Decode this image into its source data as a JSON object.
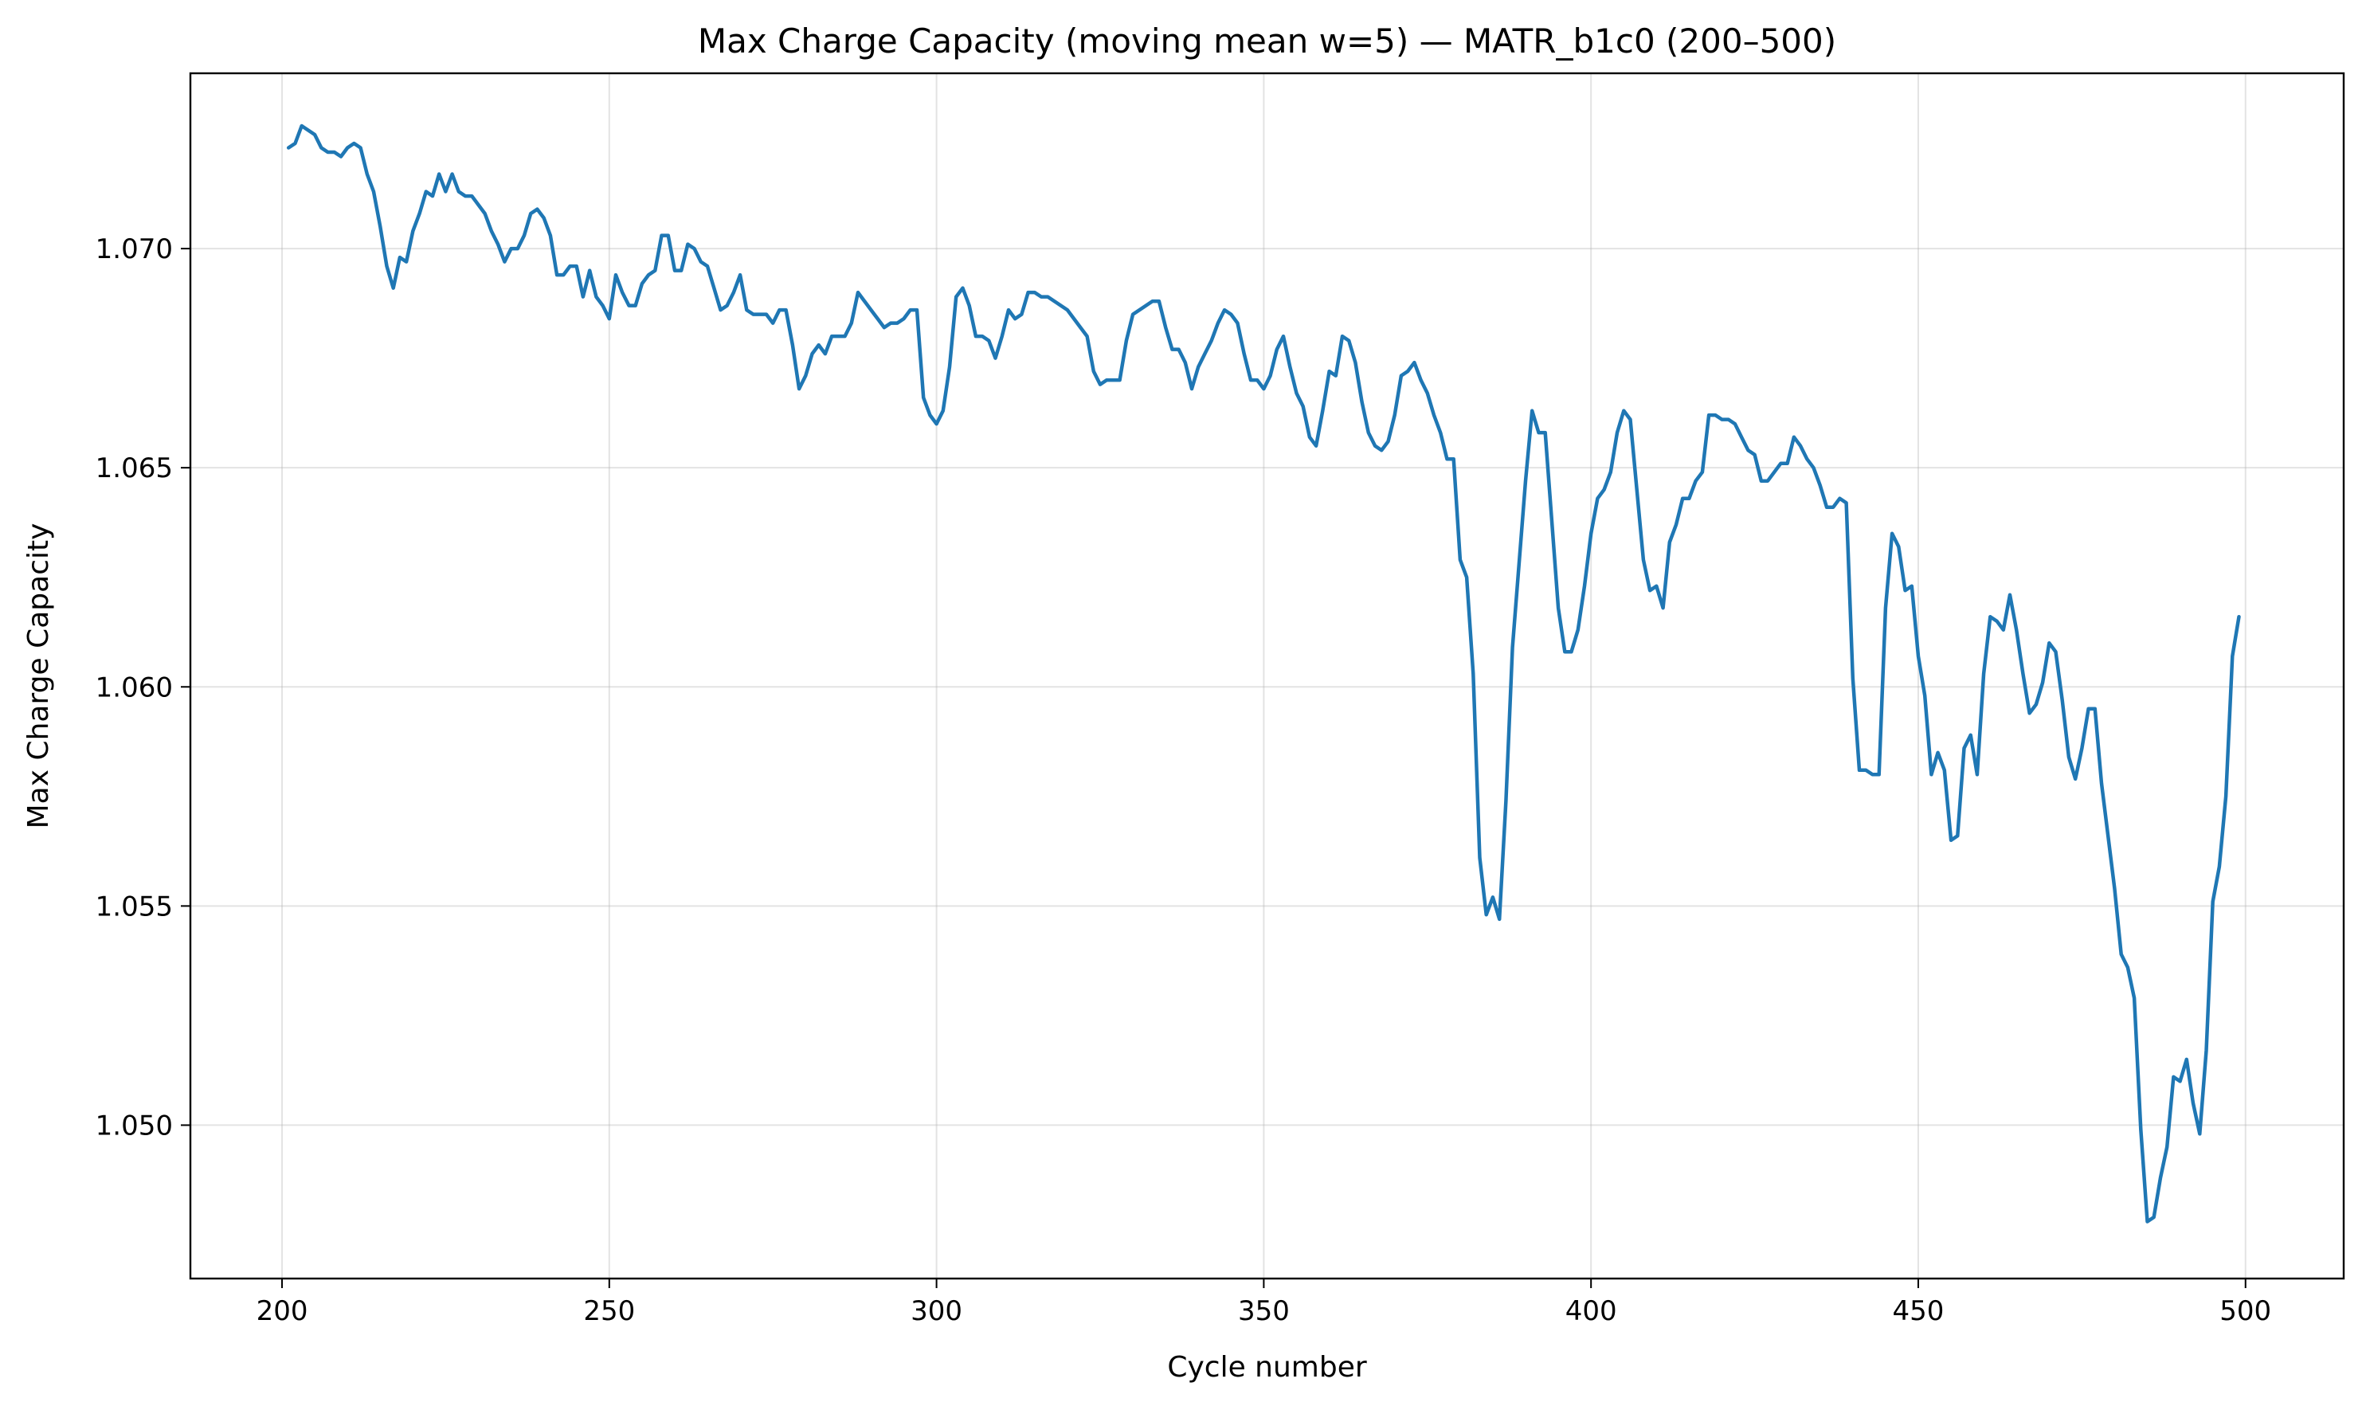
{
  "chart_data": {
    "type": "line",
    "title": "Max Charge Capacity (moving mean w=5) — MATR_b1c0 (200–500)",
    "xlabel": "Cycle number",
    "ylabel": "Max Charge Capacity",
    "xlim": [
      186,
      515
    ],
    "ylim": [
      1.0465,
      1.074
    ],
    "x_ticks": [
      200,
      250,
      300,
      350,
      400,
      450,
      500
    ],
    "y_ticks": [
      1.05,
      1.055,
      1.06,
      1.065,
      1.07
    ],
    "x_tick_labels": [
      "200",
      "250",
      "300",
      "350",
      "400",
      "450",
      "500"
    ],
    "y_tick_labels": [
      "1.050",
      "1.055",
      "1.060",
      "1.065",
      "1.070"
    ],
    "grid": true,
    "legend": "none",
    "series": [
      {
        "color": "#1f77b4",
        "x_start": 201,
        "x_step": 1,
        "values": [
          1.0723,
          1.0724,
          1.0728,
          1.0727,
          1.0726,
          1.0723,
          1.0722,
          1.0722,
          1.0721,
          1.0723,
          1.0724,
          1.0723,
          1.0717,
          1.0713,
          1.0705,
          1.0696,
          1.0691,
          1.0698,
          1.0697,
          1.0704,
          1.0708,
          1.0713,
          1.0712,
          1.0717,
          1.0713,
          1.0717,
          1.0713,
          1.0712,
          1.0712,
          1.071,
          1.0708,
          1.0704,
          1.0701,
          1.0697,
          1.07,
          1.07,
          1.0703,
          1.0708,
          1.0709,
          1.0707,
          1.0703,
          1.0694,
          1.0694,
          1.0696,
          1.0696,
          1.0689,
          1.0695,
          1.0689,
          1.0687,
          1.0684,
          1.0694,
          1.069,
          1.0687,
          1.0687,
          1.0692,
          1.0694,
          1.0695,
          1.0703,
          1.0703,
          1.0695,
          1.0695,
          1.0701,
          1.07,
          1.0697,
          1.0696,
          1.0691,
          1.0686,
          1.0687,
          1.069,
          1.0694,
          1.0686,
          1.0685,
          1.0685,
          1.0685,
          1.0683,
          1.0686,
          1.0686,
          1.0678,
          1.0668,
          1.0671,
          1.0676,
          1.0678,
          1.0676,
          1.068,
          1.068,
          1.068,
          1.0683,
          1.069,
          1.0688,
          1.0686,
          1.0684,
          1.0682,
          1.0683,
          1.0683,
          1.0684,
          1.0686,
          1.0686,
          1.0666,
          1.0662,
          1.066,
          1.0663,
          1.0673,
          1.0689,
          1.0691,
          1.0687,
          1.068,
          1.068,
          1.0679,
          1.0675,
          1.068,
          1.0686,
          1.0684,
          1.0685,
          1.069,
          1.069,
          1.0689,
          1.0689,
          1.0688,
          1.0687,
          1.0686,
          1.0684,
          1.0682,
          1.068,
          1.0672,
          1.0669,
          1.067,
          1.067,
          1.067,
          1.0679,
          1.0685,
          1.0686,
          1.0687,
          1.0688,
          1.0688,
          1.0682,
          1.0677,
          1.0677,
          1.0674,
          1.0668,
          1.0673,
          1.0676,
          1.0679,
          1.0683,
          1.0686,
          1.0685,
          1.0683,
          1.0676,
          1.067,
          1.067,
          1.0668,
          1.0671,
          1.0677,
          1.068,
          1.0673,
          1.0667,
          1.0664,
          1.0657,
          1.0655,
          1.0663,
          1.0672,
          1.0671,
          1.068,
          1.0679,
          1.0674,
          1.0665,
          1.0658,
          1.0655,
          1.0654,
          1.0656,
          1.0662,
          1.0671,
          1.0672,
          1.0674,
          1.067,
          1.0667,
          1.0662,
          1.0658,
          1.0652,
          1.0652,
          1.0629,
          1.0625,
          1.0603,
          1.0561,
          1.0548,
          1.0552,
          1.0547,
          1.0574,
          1.0609,
          1.0628,
          1.0647,
          1.0663,
          1.0658,
          1.0658,
          1.0638,
          1.0618,
          1.0608,
          1.0608,
          1.0613,
          1.0623,
          1.0635,
          1.0643,
          1.0645,
          1.0649,
          1.0658,
          1.0663,
          1.0661,
          1.0645,
          1.0629,
          1.0622,
          1.0623,
          1.0618,
          1.0633,
          1.0637,
          1.0643,
          1.0643,
          1.0647,
          1.0649,
          1.0662,
          1.0662,
          1.0661,
          1.0661,
          1.066,
          1.0657,
          1.0654,
          1.0653,
          1.0647,
          1.0647,
          1.0649,
          1.0651,
          1.0651,
          1.0657,
          1.0655,
          1.0652,
          1.065,
          1.0646,
          1.0641,
          1.0641,
          1.0643,
          1.0642,
          1.0602,
          1.0581,
          1.0581,
          1.058,
          1.058,
          1.0618,
          1.0635,
          1.0632,
          1.0622,
          1.0623,
          1.0607,
          1.0598,
          1.058,
          1.0585,
          1.0581,
          1.0565,
          1.0566,
          1.0586,
          1.0589,
          1.058,
          1.0603,
          1.0616,
          1.0615,
          1.0613,
          1.0621,
          1.0613,
          1.0603,
          1.0594,
          1.0596,
          1.0601,
          1.061,
          1.0608,
          1.0597,
          1.0584,
          1.0579,
          1.0586,
          1.0595,
          1.0595,
          1.0578,
          1.0566,
          1.0554,
          1.0539,
          1.0536,
          1.0529,
          1.0499,
          1.0478,
          1.0479,
          1.0488,
          1.0495,
          1.0511,
          1.051,
          1.0515,
          1.0505,
          1.0498,
          1.0517,
          1.0551,
          1.0559,
          1.0575,
          1.0607,
          1.0616
        ]
      }
    ]
  }
}
